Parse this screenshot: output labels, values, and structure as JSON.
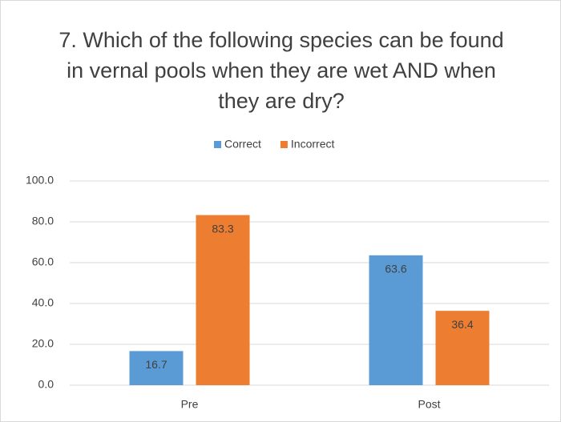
{
  "chart_data": {
    "type": "bar",
    "title": "7. Which of the following species can be found in vernal pools when they are wet AND when they are dry?",
    "categories": [
      "Pre",
      "Post"
    ],
    "series": [
      {
        "name": "Correct",
        "color": "#5b9bd5",
        "values": [
          16.7,
          63.6
        ]
      },
      {
        "name": "Incorrect",
        "color": "#ed7d31",
        "values": [
          83.3,
          36.4
        ]
      }
    ],
    "ylim": [
      0,
      100
    ],
    "yticks": [
      {
        "value": 0,
        "label": "0.0"
      },
      {
        "value": 20,
        "label": "20.0"
      },
      {
        "value": 40,
        "label": "40.0"
      },
      {
        "value": 60,
        "label": "60.0"
      },
      {
        "value": 80,
        "label": "80.0"
      },
      {
        "value": 100,
        "label": "100.0"
      }
    ],
    "grid": true,
    "legend": "top"
  }
}
